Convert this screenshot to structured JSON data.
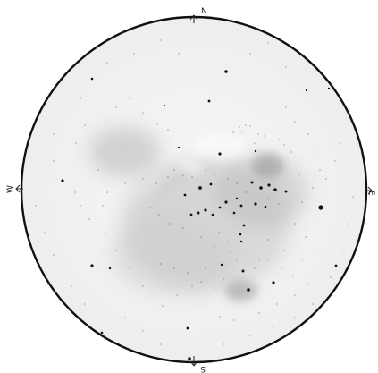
{
  "sketch": {
    "directions": {
      "north": "N",
      "south": "S",
      "east": "E",
      "west": "W"
    },
    "colors": {
      "background": "#ffffff",
      "field": "#f4f4f4",
      "nebula": "#9a9a9a",
      "outline": "#111111",
      "star": "#111111"
    }
  }
}
